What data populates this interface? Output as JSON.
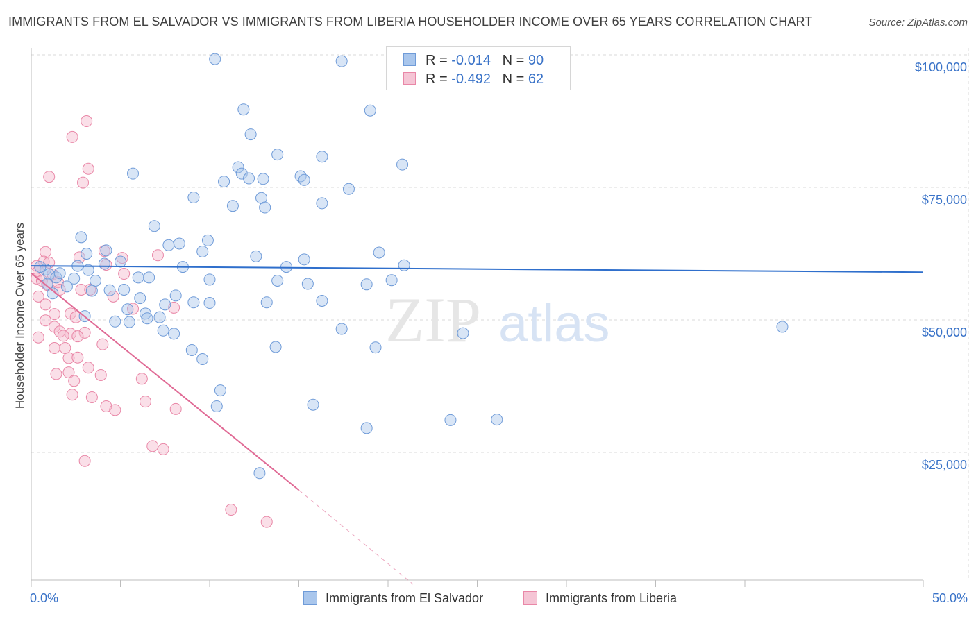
{
  "header": {
    "title": "IMMIGRANTS FROM EL SALVADOR VS IMMIGRANTS FROM LIBERIA HOUSEHOLDER INCOME OVER 65 YEARS CORRELATION CHART",
    "source": "Source: ZipAtlas.com"
  },
  "legend": {
    "rows": [
      {
        "r_label": "R =",
        "r_value": "-0.014",
        "n_label": "N =",
        "n_value": "90"
      },
      {
        "r_label": "R =",
        "r_value": "-0.492",
        "n_label": "N =",
        "n_value": "62"
      }
    ],
    "bottom": [
      "Immigrants from El Salvador",
      "Immigrants from Liberia"
    ]
  },
  "watermark": {
    "zip": "ZIP",
    "atlas": "atlas"
  },
  "colors": {
    "blue_fill": "#a9c6ec",
    "blue_stroke": "#6f9bd8",
    "blue_line": "#2f6fcc",
    "pink_fill": "#f5b8cb",
    "pink_stroke": "#e987a7",
    "pink_line": "#e06a95",
    "axis_text": "#3a73c8",
    "grid": "#d9d9d9"
  },
  "chart_data": {
    "type": "scatter",
    "title": "IMMIGRANTS FROM EL SALVADOR VS IMMIGRANTS FROM LIBERIA HOUSEHOLDER INCOME OVER 65 YEARS CORRELATION CHART",
    "xlabel": "",
    "ylabel": "Householder Income Over 65 years",
    "xlim": [
      0,
      50
    ],
    "ylim": [
      0,
      105000
    ],
    "x_tick_labels": [
      "0.0%",
      "50.0%"
    ],
    "y_ticks": [
      25000,
      50000,
      75000,
      100000
    ],
    "y_tick_labels": [
      "$25,000",
      "$50,000",
      "$75,000",
      "$100,000"
    ],
    "series": [
      {
        "name": "Immigrants from El Salvador",
        "R": -0.014,
        "N": 90,
        "trend": {
          "x": [
            0,
            50
          ],
          "y": [
            60200,
            59000
          ],
          "dashed_to": null
        },
        "points": [
          [
            10.3,
            99200
          ],
          [
            17.4,
            98800
          ],
          [
            11.9,
            89700
          ],
          [
            19.0,
            89500
          ],
          [
            12.3,
            85000
          ],
          [
            13.8,
            81200
          ],
          [
            16.3,
            80800
          ],
          [
            20.8,
            79300
          ],
          [
            11.6,
            78800
          ],
          [
            11.8,
            77600
          ],
          [
            5.7,
            77600
          ],
          [
            12.2,
            76700
          ],
          [
            13.0,
            76600
          ],
          [
            15.1,
            77100
          ],
          [
            15.3,
            76400
          ],
          [
            10.8,
            76100
          ],
          [
            17.8,
            74700
          ],
          [
            9.1,
            73100
          ],
          [
            12.9,
            73000
          ],
          [
            11.3,
            71500
          ],
          [
            13.1,
            71200
          ],
          [
            16.3,
            72000
          ],
          [
            6.9,
            67700
          ],
          [
            2.8,
            65600
          ],
          [
            9.9,
            65000
          ],
          [
            8.3,
            64400
          ],
          [
            7.7,
            64100
          ],
          [
            4.2,
            63100
          ],
          [
            9.6,
            62900
          ],
          [
            3.1,
            62500
          ],
          [
            19.5,
            62700
          ],
          [
            12.6,
            62000
          ],
          [
            15.3,
            61400
          ],
          [
            5.0,
            61000
          ],
          [
            4.1,
            60600
          ],
          [
            2.6,
            60200
          ],
          [
            8.5,
            60000
          ],
          [
            20.9,
            60300
          ],
          [
            14.3,
            60000
          ],
          [
            0.8,
            59500
          ],
          [
            1.0,
            58600
          ],
          [
            1.4,
            58000
          ],
          [
            3.2,
            59400
          ],
          [
            6.0,
            58000
          ],
          [
            6.6,
            58000
          ],
          [
            10.0,
            57600
          ],
          [
            13.8,
            57400
          ],
          [
            15.5,
            56800
          ],
          [
            18.8,
            56700
          ],
          [
            20.2,
            57500
          ],
          [
            0.9,
            56800
          ],
          [
            2.0,
            56300
          ],
          [
            3.6,
            57400
          ],
          [
            4.4,
            55600
          ],
          [
            3.4,
            55500
          ],
          [
            5.2,
            55700
          ],
          [
            8.1,
            54600
          ],
          [
            1.2,
            55000
          ],
          [
            6.1,
            54100
          ],
          [
            7.5,
            52900
          ],
          [
            9.1,
            53300
          ],
          [
            10.0,
            53200
          ],
          [
            13.2,
            53300
          ],
          [
            16.3,
            53600
          ],
          [
            5.4,
            52000
          ],
          [
            6.4,
            51200
          ],
          [
            3.0,
            50700
          ],
          [
            4.7,
            49700
          ],
          [
            5.5,
            49600
          ],
          [
            6.5,
            50300
          ],
          [
            7.2,
            50500
          ],
          [
            7.4,
            48000
          ],
          [
            8.0,
            47400
          ],
          [
            17.4,
            48300
          ],
          [
            24.2,
            47500
          ],
          [
            42.1,
            48700
          ],
          [
            13.7,
            44900
          ],
          [
            19.3,
            44800
          ],
          [
            9.0,
            44300
          ],
          [
            9.6,
            42600
          ],
          [
            10.6,
            36700
          ],
          [
            10.4,
            33700
          ],
          [
            15.8,
            34000
          ],
          [
            23.5,
            31100
          ],
          [
            26.1,
            31200
          ],
          [
            18.8,
            29600
          ],
          [
            12.8,
            21100
          ],
          [
            0.5,
            60000
          ],
          [
            1.6,
            58800
          ],
          [
            2.4,
            57800
          ]
        ]
      },
      {
        "name": "Immigrants from Liberia",
        "R": -0.492,
        "N": 62,
        "trend": {
          "x": [
            0,
            15
          ],
          "y": [
            58800,
            17900
          ],
          "dashed_to": {
            "x": 21.4,
            "y": 0
          }
        },
        "points": [
          [
            3.1,
            87500
          ],
          [
            2.3,
            84500
          ],
          [
            3.2,
            78500
          ],
          [
            1.0,
            77000
          ],
          [
            2.9,
            75900
          ],
          [
            4.1,
            63000
          ],
          [
            5.1,
            61700
          ],
          [
            7.1,
            62200
          ],
          [
            0.8,
            62800
          ],
          [
            2.7,
            61800
          ],
          [
            0.7,
            61000
          ],
          [
            1.0,
            60800
          ],
          [
            4.2,
            60400
          ],
          [
            0.3,
            60200
          ],
          [
            0.4,
            59200
          ],
          [
            1.2,
            58600
          ],
          [
            0.3,
            57800
          ],
          [
            0.6,
            57400
          ],
          [
            1.5,
            57100
          ],
          [
            0.9,
            56600
          ],
          [
            5.2,
            58700
          ],
          [
            1.6,
            55700
          ],
          [
            2.8,
            55700
          ],
          [
            3.3,
            55700
          ],
          [
            4.6,
            54400
          ],
          [
            0.4,
            54400
          ],
          [
            0.8,
            52900
          ],
          [
            5.7,
            52100
          ],
          [
            8.0,
            52300
          ],
          [
            1.3,
            51100
          ],
          [
            2.2,
            51200
          ],
          [
            2.5,
            50500
          ],
          [
            0.8,
            49900
          ],
          [
            1.3,
            48700
          ],
          [
            1.6,
            47800
          ],
          [
            2.2,
            47400
          ],
          [
            3.0,
            47600
          ],
          [
            1.8,
            47000
          ],
          [
            2.6,
            46900
          ],
          [
            0.4,
            46700
          ],
          [
            4.0,
            45400
          ],
          [
            1.3,
            44700
          ],
          [
            1.9,
            44700
          ],
          [
            2.1,
            42800
          ],
          [
            2.6,
            42900
          ],
          [
            3.2,
            41000
          ],
          [
            2.1,
            40100
          ],
          [
            1.4,
            39800
          ],
          [
            3.9,
            39600
          ],
          [
            6.2,
            38900
          ],
          [
            2.4,
            38500
          ],
          [
            2.3,
            35900
          ],
          [
            3.4,
            35400
          ],
          [
            6.4,
            34600
          ],
          [
            4.2,
            33700
          ],
          [
            4.7,
            33000
          ],
          [
            8.1,
            33200
          ],
          [
            3.0,
            23400
          ],
          [
            7.4,
            25600
          ],
          [
            11.2,
            14200
          ],
          [
            13.2,
            11900
          ],
          [
            6.8,
            26200
          ]
        ]
      }
    ]
  }
}
